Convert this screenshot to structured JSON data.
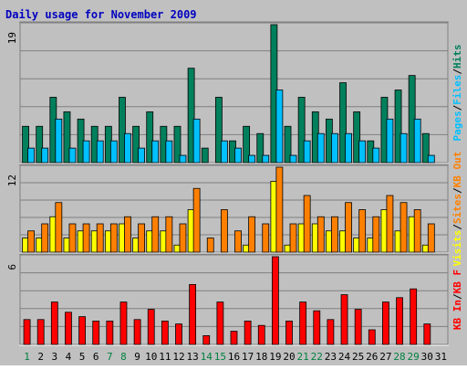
{
  "chart_data": {
    "type": "bar",
    "title": "Daily usage for November 2009",
    "categories": [
      "1",
      "2",
      "3",
      "4",
      "5",
      "6",
      "7",
      "8",
      "9",
      "10",
      "11",
      "12",
      "13",
      "14",
      "15",
      "16",
      "17",
      "18",
      "19",
      "20",
      "21",
      "22",
      "23",
      "24",
      "25",
      "26",
      "27",
      "28",
      "29",
      "30",
      "31"
    ],
    "weekend_days": [
      "1",
      "7",
      "8",
      "14",
      "15",
      "21",
      "22",
      "28",
      "29"
    ],
    "panels": [
      {
        "id": "top",
        "max_label": "19",
        "ymax": 19,
        "right_label": [
          "Pages",
          "/",
          "Files",
          "/",
          "Hits"
        ],
        "series": [
          {
            "name": "Hits",
            "color": "#00805c",
            "values": [
              5,
              5,
              9,
              7,
              6,
              5,
              5,
              9,
              5,
              7,
              5,
              5,
              13,
              2,
              9,
              3,
              5,
              4,
              19,
              5,
              9,
              7,
              6,
              11,
              7,
              3,
              9,
              10,
              12,
              4,
              0
            ]
          },
          {
            "name": "Files",
            "color": "#00c0ff",
            "values": [
              2,
              2,
              6,
              2,
              3,
              3,
              3,
              4,
              2,
              3,
              3,
              1,
              6,
              0,
              3,
              2,
              1,
              1,
              10,
              1,
              3,
              4,
              4,
              4,
              3,
              2,
              6,
              4,
              6,
              1,
              0
            ]
          },
          {
            "name": "Pages",
            "color": "#00c0ff",
            "values": [
              0,
              0,
              0,
              0,
              0,
              0,
              0,
              0,
              0,
              0,
              0,
              0,
              0,
              0,
              0,
              0,
              0,
              0,
              0,
              0,
              0,
              0,
              0,
              0,
              0,
              0,
              0,
              0,
              0,
              0,
              0
            ]
          }
        ]
      },
      {
        "id": "middle",
        "max_label": "12",
        "ymax": 12,
        "right_label": [
          "Visits",
          "/",
          "Sites",
          "/",
          "KB Out"
        ],
        "series": [
          {
            "name": "Visits",
            "color": "#ffff00",
            "values": [
              2,
              2,
              5,
              2,
              3,
              3,
              3,
              4,
              2,
              3,
              3,
              1,
              6,
              0,
              0,
              0,
              1,
              0,
              10,
              1,
              4,
              4,
              3,
              3,
              2,
              2,
              6,
              3,
              5,
              1,
              0
            ]
          },
          {
            "name": "Sites",
            "color": "#ff8000",
            "values": [
              3,
              4,
              7,
              4,
              4,
              4,
              4,
              5,
              4,
              5,
              5,
              4,
              9,
              2,
              6,
              3,
              5,
              4,
              12,
              4,
              8,
              5,
              5,
              7,
              6,
              5,
              8,
              7,
              6,
              4,
              0
            ]
          },
          {
            "name": "KB Out",
            "color": "#ff8000",
            "values": [
              0,
              0,
              0,
              0,
              0,
              0,
              0,
              0,
              0,
              0,
              0,
              0,
              0,
              0,
              0,
              0,
              0,
              0,
              0,
              0,
              0,
              0,
              0,
              0,
              0,
              0,
              0,
              0,
              0,
              0,
              0
            ]
          }
        ]
      },
      {
        "id": "bottom",
        "max_label": "6",
        "ymax": 6,
        "right_label": [
          "KB In",
          "/",
          "KB F"
        ],
        "series": [
          {
            "name": "KB In",
            "color": "#ff0000",
            "values": [
              1.7,
              1.7,
              2.9,
              2.2,
              1.9,
              1.6,
              1.6,
              2.9,
              1.7,
              2.4,
              1.6,
              1.4,
              4.1,
              0.6,
              2.9,
              0.9,
              1.6,
              1.3,
              6,
              1.6,
              2.9,
              2.3,
              1.7,
              3.4,
              2.4,
              1.0,
              2.9,
              3.2,
              3.8,
              1.4,
              0
            ]
          }
        ]
      }
    ],
    "colors": {
      "background": "#c0c0c0",
      "title": "#0000c0",
      "gridline": "#808080",
      "weekday_label": "#0000c0",
      "weekend_label": "#008040",
      "pages": "#00c0ff",
      "files": "#00c0ff",
      "hits": "#00805c",
      "visits": "#ffff00",
      "sites": "#ff8000",
      "kb_out": "#ff8000",
      "kb_in": "#ff0000",
      "kb_f": "#ff0000",
      "slash": "#000000"
    }
  }
}
